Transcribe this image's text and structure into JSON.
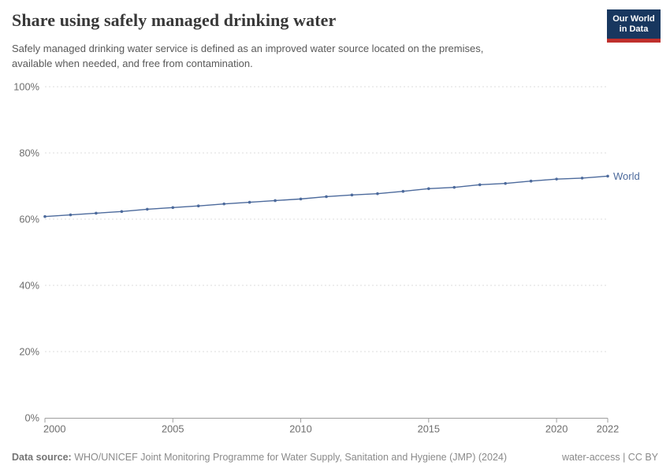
{
  "header": {
    "title": "Share using safely managed drinking water",
    "subtitle_lines": [
      "Safely managed drinking water service is defined as an improved water source located on the premises,",
      "available when needed, and free from contamination."
    ],
    "logo": {
      "line1": "Our World",
      "line2": "in Data"
    }
  },
  "chart_data": {
    "type": "line",
    "title": "Share using safely managed drinking water",
    "subtitle": "Safely managed drinking water service is defined as an improved water source located on the premises, available when needed, and free from contamination.",
    "xlabel": "",
    "ylabel": "",
    "xlim": [
      2000,
      2022
    ],
    "ylim": [
      0,
      100
    ],
    "grid": "horizontal-dashed",
    "legend_position": "end-of-line",
    "x": [
      2000,
      2001,
      2002,
      2003,
      2004,
      2005,
      2006,
      2007,
      2008,
      2009,
      2010,
      2011,
      2012,
      2013,
      2014,
      2015,
      2016,
      2017,
      2018,
      2019,
      2020,
      2021,
      2022
    ],
    "series": [
      {
        "name": "World",
        "values": [
          60.8,
          61.3,
          61.8,
          62.3,
          63.0,
          63.5,
          64.0,
          64.6,
          65.1,
          65.6,
          66.1,
          66.8,
          67.3,
          67.7,
          68.4,
          69.2,
          69.6,
          70.4,
          70.8,
          71.5,
          72.1,
          72.4,
          73.0
        ]
      }
    ],
    "xticks": [
      2000,
      2005,
      2010,
      2015,
      2020,
      2022
    ],
    "yticks": [
      0,
      20,
      40,
      60,
      80,
      100
    ],
    "ytick_suffix": "%"
  },
  "footer": {
    "source_label": "Data source:",
    "source": "WHO/UNICEF Joint Monitoring Programme for Water Supply, Sanitation and Hygiene (JMP) (2024)",
    "note": "water-access | CC BY"
  },
  "colors": {
    "series": "#4c6a9c",
    "gridline": "#dddddd",
    "axis": "#9e9e9e",
    "tick_label": "#6e6e6e",
    "logo_bg": "#18375f",
    "logo_stripe": "#c0302c"
  }
}
